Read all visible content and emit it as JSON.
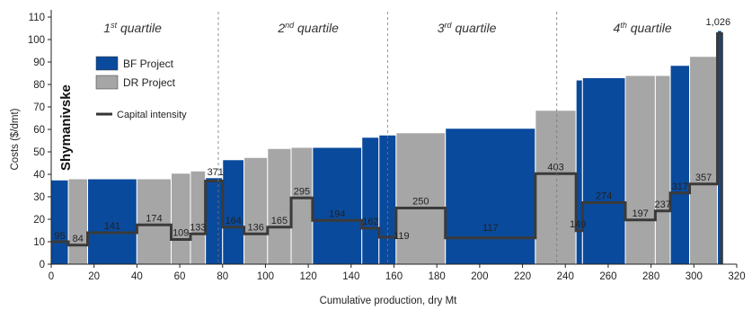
{
  "chart_data": {
    "type": "bar",
    "subtype": "cost curve (variable-width bars) with capital intensity step line",
    "xlabel": "Cumulative production, dry Mt",
    "ylabel": "Costs ($/dmt)",
    "xlim": [
      0,
      320
    ],
    "ylim": [
      0,
      110
    ],
    "xticks": [
      0,
      20,
      40,
      60,
      80,
      100,
      120,
      140,
      160,
      180,
      200,
      220,
      240,
      260,
      280,
      300,
      320
    ],
    "yticks": [
      0,
      10,
      20,
      30,
      40,
      50,
      60,
      70,
      80,
      90,
      100,
      110
    ],
    "quartile_labels": [
      {
        "base": "1",
        "sup": "st",
        "text": " quartile"
      },
      {
        "base": "2",
        "sup": "nd",
        "text": " quartile"
      },
      {
        "base": "3",
        "sup": "rd",
        "text": " quartile"
      },
      {
        "base": "4",
        "sup": "th",
        "text": " quartile"
      }
    ],
    "quartile_dividers": [
      78,
      157,
      236
    ],
    "legend": {
      "placement": "top-left",
      "entries": [
        {
          "label": "BF Project",
          "color": "#0a4a9c"
        },
        {
          "label": "DR Project",
          "color": "#a6a6a6"
        },
        {
          "label": "Capital intensity",
          "color": "#333333"
        }
      ]
    },
    "callout": "Shymanivske",
    "colors": {
      "BF": "#0a4a9c",
      "DR": "#a6a6a6",
      "line": "#3a3a3a",
      "grid": "none"
    },
    "grid": false,
    "bars": [
      {
        "x0": 0,
        "x1": 8,
        "cost": 37.5,
        "type": "BF",
        "capital": 10,
        "label": "95"
      },
      {
        "x0": 8,
        "x1": 17,
        "cost": 38,
        "type": "DR",
        "capital": 8.5,
        "label": "84"
      },
      {
        "x0": 17,
        "x1": 40,
        "cost": 38,
        "type": "BF",
        "capital": 14,
        "label": "141"
      },
      {
        "x0": 40,
        "x1": 56,
        "cost": 38,
        "type": "DR",
        "capital": 17.5,
        "label": "174"
      },
      {
        "x0": 56,
        "x1": 65,
        "cost": 40.5,
        "type": "DR",
        "capital": 11,
        "label": "109"
      },
      {
        "x0": 65,
        "x1": 72,
        "cost": 41.5,
        "type": "DR",
        "capital": 13.5,
        "label": "133"
      },
      {
        "x0": 72,
        "x1": 80,
        "cost": 38.5,
        "type": "BF",
        "capital": 37,
        "label": "371"
      },
      {
        "x0": 80,
        "x1": 90,
        "cost": 46.5,
        "type": "BF",
        "capital": 16.5,
        "label": "164"
      },
      {
        "x0": 90,
        "x1": 101,
        "cost": 47.5,
        "type": "DR",
        "capital": 13.5,
        "label": "136"
      },
      {
        "x0": 101,
        "x1": 112,
        "cost": 51.5,
        "type": "DR",
        "capital": 16.5,
        "label": "165"
      },
      {
        "x0": 112,
        "x1": 122,
        "cost": 52,
        "type": "DR",
        "capital": 29.5,
        "label": "295"
      },
      {
        "x0": 122,
        "x1": 145,
        "cost": 52,
        "type": "BF",
        "capital": 19.5,
        "label": "194"
      },
      {
        "x0": 145,
        "x1": 153,
        "cost": 56.5,
        "type": "BF",
        "capital": 16,
        "label": "162"
      },
      {
        "x0": 153,
        "x1": 161,
        "cost": 57.5,
        "type": "BF",
        "capital": 12,
        "label": "119"
      },
      {
        "x0": 161,
        "x1": 184,
        "cost": 58.5,
        "type": "DR",
        "capital": 25,
        "label": "250"
      },
      {
        "x0": 184,
        "x1": 226,
        "cost": 60.5,
        "type": "BF",
        "capital": 11.7,
        "label": "117"
      },
      {
        "x0": 226,
        "x1": 245,
        "cost": 68.5,
        "type": "DR",
        "capital": 40.3,
        "label": "403"
      },
      {
        "x0": 245,
        "x1": 248,
        "cost": 82,
        "type": "BF",
        "capital": 14.9,
        "label": "149"
      },
      {
        "x0": 248,
        "x1": 268,
        "cost": 83,
        "type": "BF",
        "capital": 27.4,
        "label": "274"
      },
      {
        "x0": 268,
        "x1": 282,
        "cost": 84,
        "type": "DR",
        "capital": 19.7,
        "label": "197"
      },
      {
        "x0": 282,
        "x1": 289,
        "cost": 84,
        "type": "DR",
        "capital": 23.7,
        "label": "237"
      },
      {
        "x0": 289,
        "x1": 298,
        "cost": 88.5,
        "type": "BF",
        "capital": 31.7,
        "label": "317"
      },
      {
        "x0": 298,
        "x1": 311,
        "cost": 92.5,
        "type": "DR",
        "capital": 35.7,
        "label": "357"
      },
      {
        "x0": 311,
        "x1": 313,
        "cost": 104,
        "type": "BF",
        "capital": 102.6,
        "label": "1,026"
      }
    ]
  }
}
